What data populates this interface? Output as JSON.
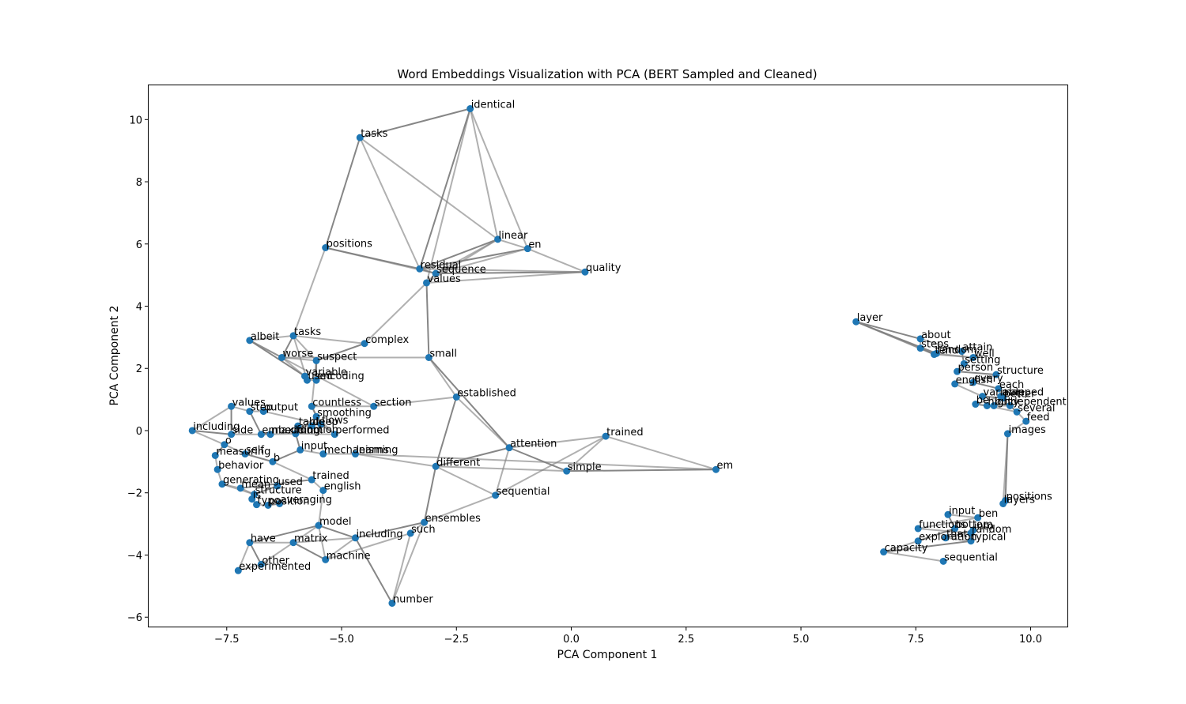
{
  "chart_data": {
    "type": "scatter",
    "title": "Word Embeddings Visualization with PCA (BERT Sampled and Cleaned)",
    "xlabel": "PCA Component 1",
    "ylabel": "PCA Component 2",
    "xlim": [
      -9.2,
      10.8
    ],
    "ylim": [
      -6.3,
      11.1
    ],
    "xticks": [
      -7.5,
      -5.0,
      -2.5,
      0.0,
      2.5,
      5.0,
      7.5,
      10.0
    ],
    "xtick_labels": [
      "−7.5",
      "−5.0",
      "−2.5",
      "0.0",
      "2.5",
      "5.0",
      "7.5",
      "10.0"
    ],
    "yticks": [
      -6,
      -4,
      -2,
      0,
      2,
      4,
      6,
      8,
      10
    ],
    "ytick_labels": [
      "−6",
      "−4",
      "−2",
      "0",
      "2",
      "4",
      "6",
      "8",
      "10"
    ],
    "grid": false,
    "point_color": "#1f77b4",
    "edge_color": "#808080",
    "points": [
      {
        "label": "identical",
        "x": -2.2,
        "y": 10.35
      },
      {
        "label": "tasks",
        "x": -4.6,
        "y": 9.42
      },
      {
        "label": "linear",
        "x": -1.6,
        "y": 6.15
      },
      {
        "label": "en",
        "x": -0.95,
        "y": 5.85
      },
      {
        "label": "positions",
        "x": -5.35,
        "y": 5.88
      },
      {
        "label": "residual",
        "x": -3.3,
        "y": 5.2
      },
      {
        "label": "sequence",
        "x": -2.95,
        "y": 5.05
      },
      {
        "label": "values",
        "x": -3.15,
        "y": 4.75
      },
      {
        "label": "quality",
        "x": 0.3,
        "y": 5.1
      },
      {
        "label": "albeit",
        "x": -7.0,
        "y": 2.9
      },
      {
        "label": "tasks",
        "x": -6.05,
        "y": 3.05
      },
      {
        "label": "complex",
        "x": -4.5,
        "y": 2.8
      },
      {
        "label": "small",
        "x": -3.1,
        "y": 2.35
      },
      {
        "label": "worse",
        "x": -6.3,
        "y": 2.35
      },
      {
        "label": "suspect",
        "x": -5.55,
        "y": 2.25
      },
      {
        "label": "variable",
        "x": -5.8,
        "y": 1.75
      },
      {
        "label": "used",
        "x": -5.75,
        "y": 1.62
      },
      {
        "label": "encoding",
        "x": -5.55,
        "y": 1.62
      },
      {
        "label": "established",
        "x": -2.5,
        "y": 1.08
      },
      {
        "label": "countless",
        "x": -5.65,
        "y": 0.78
      },
      {
        "label": "section",
        "x": -4.3,
        "y": 0.78
      },
      {
        "label": "smoothing",
        "x": -5.55,
        "y": 0.45
      },
      {
        "label": "values",
        "x": -7.4,
        "y": 0.78
      },
      {
        "label": "step",
        "x": -7.0,
        "y": 0.62
      },
      {
        "label": "output",
        "x": -6.7,
        "y": 0.62
      },
      {
        "label": "table",
        "x": -5.95,
        "y": 0.15
      },
      {
        "label": "flows",
        "x": -5.45,
        "y": 0.2
      },
      {
        "label": "deep",
        "x": -5.65,
        "y": 0.15
      },
      {
        "label": "including",
        "x": -8.25,
        "y": 0.0
      },
      {
        "label": "side",
        "x": -7.4,
        "y": -0.12
      },
      {
        "label": "embedding",
        "x": -6.75,
        "y": -0.12
      },
      {
        "label": "maximum",
        "x": -6.55,
        "y": -0.12
      },
      {
        "label": "function",
        "x": -6.0,
        "y": -0.1
      },
      {
        "label": "performed",
        "x": -5.15,
        "y": -0.12
      },
      {
        "label": "attention",
        "x": -1.35,
        "y": -0.55
      },
      {
        "label": "trained",
        "x": 0.75,
        "y": -0.18
      },
      {
        "label": "input",
        "x": -5.9,
        "y": -0.62
      },
      {
        "label": "mechanisms",
        "x": -5.4,
        "y": -0.75
      },
      {
        "label": "learning",
        "x": -4.7,
        "y": -0.75
      },
      {
        "label": "o",
        "x": -7.55,
        "y": -0.45
      },
      {
        "label": "measuring",
        "x": -7.75,
        "y": -0.8
      },
      {
        "label": "self",
        "x": -7.1,
        "y": -0.75
      },
      {
        "label": "b",
        "x": -6.5,
        "y": -1.0
      },
      {
        "label": "behavior",
        "x": -7.7,
        "y": -1.25
      },
      {
        "label": "different",
        "x": -2.95,
        "y": -1.15
      },
      {
        "label": "simple",
        "x": -0.1,
        "y": -1.3
      },
      {
        "label": "em",
        "x": 3.15,
        "y": -1.25
      },
      {
        "label": "trained",
        "x": -5.65,
        "y": -1.58
      },
      {
        "label": "generating",
        "x": -7.6,
        "y": -1.72
      },
      {
        "label": "used",
        "x": -6.4,
        "y": -1.78
      },
      {
        "label": "mean",
        "x": -7.2,
        "y": -1.85
      },
      {
        "label": "english",
        "x": -5.4,
        "y": -1.92
      },
      {
        "label": "sequential",
        "x": -1.65,
        "y": -2.08
      },
      {
        "label": "structure",
        "x": -6.9,
        "y": -2.05
      },
      {
        "label": "is",
        "x": -6.95,
        "y": -2.2
      },
      {
        "label": "typo",
        "x": -6.85,
        "y": -2.38
      },
      {
        "label": "position",
        "x": -6.6,
        "y": -2.4
      },
      {
        "label": "averaging",
        "x": -6.35,
        "y": -2.35
      },
      {
        "label": "model",
        "x": -5.5,
        "y": -3.05
      },
      {
        "label": "ensembles",
        "x": -3.2,
        "y": -2.95
      },
      {
        "label": "such",
        "x": -3.5,
        "y": -3.3
      },
      {
        "label": "including",
        "x": -4.7,
        "y": -3.45
      },
      {
        "label": "have",
        "x": -7.0,
        "y": -3.6
      },
      {
        "label": "matrix",
        "x": -6.05,
        "y": -3.6
      },
      {
        "label": "other",
        "x": -6.75,
        "y": -4.3
      },
      {
        "label": "machine",
        "x": -5.35,
        "y": -4.15
      },
      {
        "label": "experimented",
        "x": -7.25,
        "y": -4.5
      },
      {
        "label": "number",
        "x": -3.9,
        "y": -5.55
      },
      {
        "label": "layer",
        "x": 6.2,
        "y": 3.5
      },
      {
        "label": "about",
        "x": 7.6,
        "y": 2.95
      },
      {
        "label": "steps",
        "x": 7.6,
        "y": 2.65
      },
      {
        "label": "tend",
        "x": 7.9,
        "y": 2.45
      },
      {
        "label": "random",
        "x": 7.95,
        "y": 2.48
      },
      {
        "label": "attain",
        "x": 8.5,
        "y": 2.55
      },
      {
        "label": "well",
        "x": 8.75,
        "y": 2.35
      },
      {
        "label": "setting",
        "x": 8.55,
        "y": 2.15
      },
      {
        "label": "person",
        "x": 8.4,
        "y": 1.9
      },
      {
        "label": "structure",
        "x": 9.25,
        "y": 1.8
      },
      {
        "label": "every",
        "x": 8.75,
        "y": 1.55
      },
      {
        "label": "english",
        "x": 8.35,
        "y": 1.5
      },
      {
        "label": "each",
        "x": 9.3,
        "y": 1.35
      },
      {
        "label": "variable",
        "x": 8.95,
        "y": 1.1
      },
      {
        "label": "mapped",
        "x": 9.35,
        "y": 1.1
      },
      {
        "label": "better",
        "x": 9.4,
        "y": 1.05
      },
      {
        "label": "be",
        "x": 8.8,
        "y": 0.85
      },
      {
        "label": "highly",
        "x": 9.05,
        "y": 0.8
      },
      {
        "label": "but",
        "x": 9.2,
        "y": 0.8
      },
      {
        "label": "dependent",
        "x": 9.55,
        "y": 0.8
      },
      {
        "label": "several",
        "x": 9.7,
        "y": 0.6
      },
      {
        "label": "feed",
        "x": 9.9,
        "y": 0.3
      },
      {
        "label": "images",
        "x": 9.5,
        "y": -0.1
      },
      {
        "label": "positions",
        "x": 9.45,
        "y": -2.25
      },
      {
        "label": "layers",
        "x": 9.4,
        "y": -2.35
      },
      {
        "label": "input",
        "x": 8.2,
        "y": -2.7
      },
      {
        "label": "ben",
        "x": 8.85,
        "y": -2.8
      },
      {
        "label": "functions",
        "x": 7.55,
        "y": -3.15
      },
      {
        "label": "bottom",
        "x": 8.35,
        "y": -3.15
      },
      {
        "label": "into",
        "x": 8.75,
        "y": -3.2
      },
      {
        "label": "random",
        "x": 8.7,
        "y": -3.3
      },
      {
        "label": "exploration",
        "x": 7.55,
        "y": -3.55
      },
      {
        "label": "that",
        "x": 8.15,
        "y": -3.45
      },
      {
        "label": "typical",
        "x": 8.7,
        "y": -3.55
      },
      {
        "label": "capacity",
        "x": 6.8,
        "y": -3.9
      },
      {
        "label": "sequential",
        "x": 8.1,
        "y": -4.2
      }
    ],
    "edges": [
      [
        0,
        1
      ],
      [
        0,
        2
      ],
      [
        0,
        3
      ],
      [
        0,
        5
      ],
      [
        0,
        7
      ],
      [
        1,
        2
      ],
      [
        1,
        4
      ],
      [
        1,
        5
      ],
      [
        2,
        3
      ],
      [
        2,
        5
      ],
      [
        2,
        6
      ],
      [
        2,
        7
      ],
      [
        3,
        5
      ],
      [
        3,
        6
      ],
      [
        3,
        8
      ],
      [
        4,
        5
      ],
      [
        4,
        6
      ],
      [
        4,
        10
      ],
      [
        5,
        6
      ],
      [
        5,
        8
      ],
      [
        6,
        7
      ],
      [
        6,
        8
      ],
      [
        7,
        8
      ],
      [
        7,
        11
      ],
      [
        7,
        12
      ],
      [
        9,
        10
      ],
      [
        9,
        13
      ],
      [
        9,
        15
      ],
      [
        9,
        20
      ],
      [
        10,
        11
      ],
      [
        10,
        13
      ],
      [
        10,
        14
      ],
      [
        10,
        16
      ],
      [
        11,
        14
      ],
      [
        12,
        18
      ],
      [
        12,
        13
      ],
      [
        12,
        34
      ],
      [
        13,
        14
      ],
      [
        13,
        15
      ],
      [
        14,
        17
      ],
      [
        14,
        19
      ],
      [
        16,
        17
      ],
      [
        15,
        16
      ],
      [
        18,
        20
      ],
      [
        18,
        34
      ],
      [
        18,
        44
      ],
      [
        19,
        20
      ],
      [
        19,
        21
      ],
      [
        19,
        26
      ],
      [
        22,
        23
      ],
      [
        22,
        28
      ],
      [
        22,
        29
      ],
      [
        23,
        24
      ],
      [
        24,
        26
      ],
      [
        23,
        30
      ],
      [
        25,
        26
      ],
      [
        25,
        27
      ],
      [
        26,
        33
      ],
      [
        21,
        33
      ],
      [
        21,
        32
      ],
      [
        28,
        29
      ],
      [
        28,
        39
      ],
      [
        29,
        30
      ],
      [
        30,
        31
      ],
      [
        31,
        32
      ],
      [
        32,
        33
      ],
      [
        32,
        36
      ],
      [
        36,
        37
      ],
      [
        37,
        38
      ],
      [
        36,
        42
      ],
      [
        38,
        44
      ],
      [
        38,
        46
      ],
      [
        39,
        40
      ],
      [
        39,
        41
      ],
      [
        40,
        43
      ],
      [
        41,
        42
      ],
      [
        42,
        47
      ],
      [
        43,
        48
      ],
      [
        44,
        34
      ],
      [
        44,
        45
      ],
      [
        44,
        52
      ],
      [
        44,
        59
      ],
      [
        34,
        35
      ],
      [
        34,
        52
      ],
      [
        34,
        45
      ],
      [
        35,
        45
      ],
      [
        35,
        46
      ],
      [
        45,
        46
      ],
      [
        35,
        52
      ],
      [
        47,
        51
      ],
      [
        47,
        50
      ],
      [
        48,
        50
      ],
      [
        48,
        53
      ],
      [
        49,
        53
      ],
      [
        50,
        53
      ],
      [
        51,
        58
      ],
      [
        53,
        54
      ],
      [
        54,
        55
      ],
      [
        55,
        56
      ],
      [
        56,
        57
      ],
      [
        52,
        59
      ],
      [
        59,
        60
      ],
      [
        59,
        61
      ],
      [
        59,
        67
      ],
      [
        60,
        67
      ],
      [
        58,
        61
      ],
      [
        58,
        63
      ],
      [
        58,
        65
      ],
      [
        58,
        62
      ],
      [
        61,
        63
      ],
      [
        61,
        65
      ],
      [
        61,
        67
      ],
      [
        60,
        65
      ],
      [
        62,
        63
      ],
      [
        62,
        64
      ],
      [
        62,
        66
      ],
      [
        63,
        64
      ],
      [
        63,
        65
      ],
      [
        64,
        66
      ],
      [
        46,
        106
      ],
      [
        68,
        69
      ],
      [
        68,
        70
      ],
      [
        68,
        71
      ],
      [
        68,
        72
      ],
      [
        69,
        70
      ],
      [
        69,
        73
      ],
      [
        70,
        71
      ],
      [
        71,
        74
      ],
      [
        72,
        74
      ],
      [
        73,
        75
      ],
      [
        74,
        76
      ],
      [
        75,
        76
      ],
      [
        76,
        77
      ],
      [
        77,
        78
      ],
      [
        78,
        79
      ],
      [
        78,
        80
      ],
      [
        79,
        81
      ],
      [
        80,
        82
      ],
      [
        81,
        83
      ],
      [
        82,
        84
      ],
      [
        83,
        86
      ],
      [
        84,
        85
      ],
      [
        85,
        88
      ],
      [
        86,
        87
      ],
      [
        87,
        88
      ],
      [
        88,
        89
      ],
      [
        89,
        90
      ],
      [
        90,
        91
      ],
      [
        90,
        92
      ],
      [
        93,
        94
      ],
      [
        93,
        96
      ],
      [
        94,
        95
      ],
      [
        95,
        98
      ],
      [
        96,
        99
      ],
      [
        97,
        98
      ],
      [
        97,
        100
      ],
      [
        98,
        101
      ],
      [
        99,
        102
      ],
      [
        100,
        101
      ],
      [
        101,
        102
      ],
      [
        102,
        103
      ],
      [
        100,
        104
      ],
      [
        103,
        104
      ],
      [
        104,
        105
      ],
      [
        106,
        100
      ],
      [
        106,
        105
      ],
      [
        97,
        106
      ],
      [
        99,
        105
      ]
    ]
  }
}
